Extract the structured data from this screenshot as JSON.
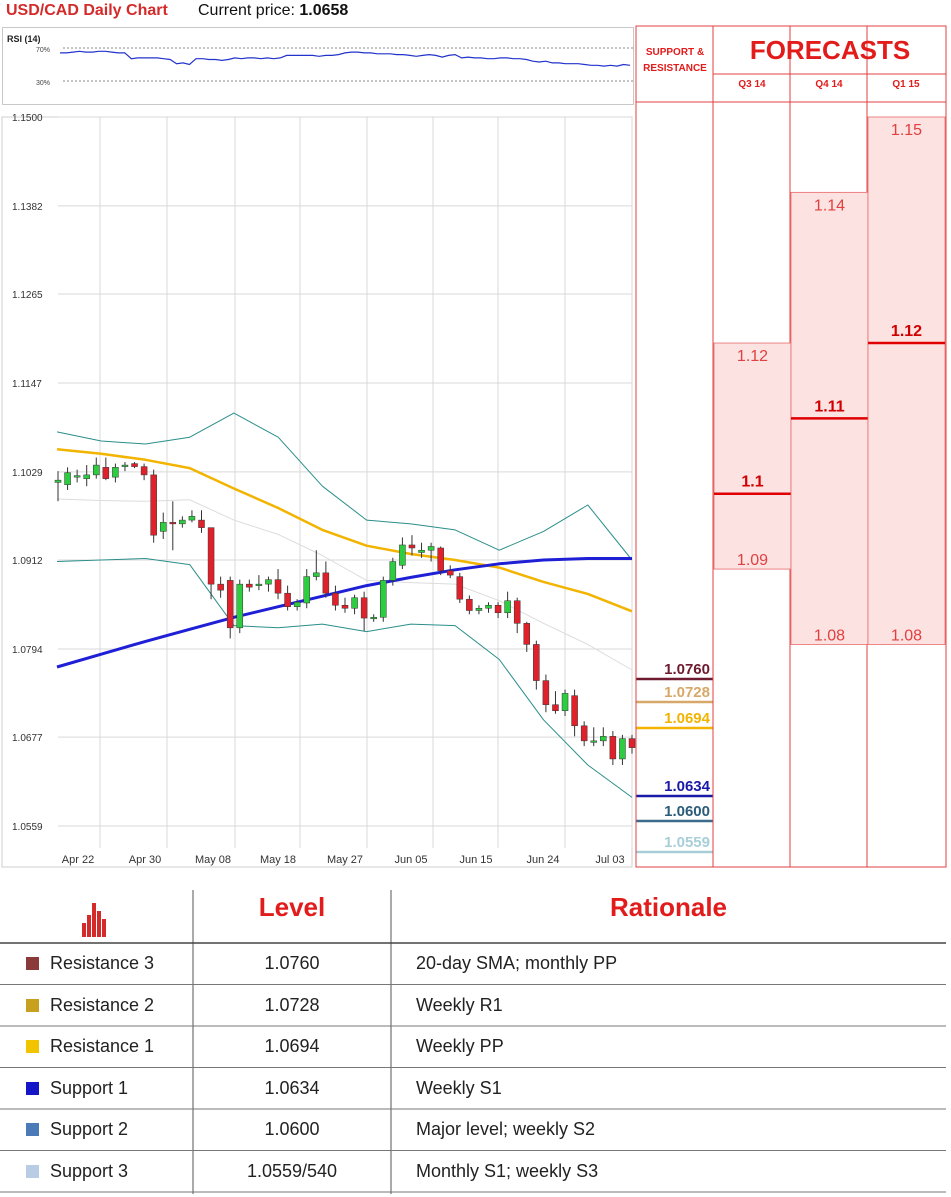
{
  "header": {
    "title": "USD/CAD Daily Chart",
    "price_label": "Current price:",
    "price_value": "1.0658"
  },
  "rsi": {
    "label": "RSI (14)",
    "levels": [
      "70%",
      "30%"
    ],
    "values": [
      64,
      64,
      65,
      66,
      65,
      65,
      66,
      66,
      65,
      64,
      64,
      57,
      58,
      58,
      58,
      58,
      57,
      56,
      51,
      52,
      50,
      57,
      57,
      56,
      56,
      55,
      56,
      58,
      57,
      58,
      58,
      57,
      58,
      57,
      58,
      61,
      61,
      61,
      61,
      61,
      60,
      61,
      61,
      62,
      64,
      65,
      65,
      64,
      64,
      63,
      63,
      63,
      62,
      62,
      61,
      60,
      61,
      62,
      61,
      59,
      61,
      62,
      58,
      59,
      58,
      58,
      57,
      57,
      58,
      58,
      57,
      57,
      56,
      54,
      53,
      54,
      52,
      52,
      51,
      51,
      51,
      50,
      49,
      49,
      48,
      49,
      48,
      50,
      49
    ]
  },
  "chart_data": {
    "type": "candlestick",
    "title": "USD/CAD Daily Chart",
    "y_ticks": [
      "1.1500",
      "1.1382",
      "1.1265",
      "1.1147",
      "1.1029",
      "1.0912",
      "1.0794",
      "1.0677",
      "1.0559"
    ],
    "x_ticks": [
      "Apr 22",
      "Apr 30",
      "May 08",
      "May 18",
      "May 27",
      "Jun 05",
      "Jun 15",
      "Jun 24",
      "Jul 03"
    ],
    "ylim": [
      1.0559,
      1.15
    ],
    "grid": true,
    "candles": [
      {
        "date": "Apr 21",
        "o": 1.1015,
        "h": 1.103,
        "l": 1.099,
        "c": 1.1018
      },
      {
        "date": "Apr 22",
        "o": 1.1012,
        "h": 1.1035,
        "l": 1.1005,
        "c": 1.1028
      },
      {
        "date": "Apr 23",
        "o": 1.1022,
        "h": 1.1032,
        "l": 1.1015,
        "c": 1.1024
      },
      {
        "date": "Apr 24",
        "o": 1.102,
        "h": 1.1038,
        "l": 1.101,
        "c": 1.1025
      },
      {
        "date": "Apr 25",
        "o": 1.1025,
        "h": 1.1048,
        "l": 1.102,
        "c": 1.1038
      },
      {
        "date": "Apr 28",
        "o": 1.1035,
        "h": 1.1048,
        "l": 1.1018,
        "c": 1.102
      },
      {
        "date": "Apr 29",
        "o": 1.1022,
        "h": 1.104,
        "l": 1.1015,
        "c": 1.1035
      },
      {
        "date": "Apr 30",
        "o": 1.1036,
        "h": 1.1042,
        "l": 1.103,
        "c": 1.1038
      },
      {
        "date": "May 01",
        "o": 1.104,
        "h": 1.1042,
        "l": 1.1034,
        "c": 1.1036
      },
      {
        "date": "May 02",
        "o": 1.1036,
        "h": 1.104,
        "l": 1.1018,
        "c": 1.1025
      },
      {
        "date": "May 05",
        "o": 1.1025,
        "h": 1.1032,
        "l": 1.0935,
        "c": 1.0945
      },
      {
        "date": "May 06",
        "o": 1.095,
        "h": 1.0975,
        "l": 1.094,
        "c": 1.0962
      },
      {
        "date": "May 07",
        "o": 1.0962,
        "h": 1.099,
        "l": 1.0925,
        "c": 1.096
      },
      {
        "date": "May 08",
        "o": 1.096,
        "h": 1.097,
        "l": 1.0955,
        "c": 1.0965
      },
      {
        "date": "May 09",
        "o": 1.0965,
        "h": 1.0978,
        "l": 1.0962,
        "c": 1.097
      },
      {
        "date": "May 12",
        "o": 1.0965,
        "h": 1.0978,
        "l": 1.0948,
        "c": 1.0955
      },
      {
        "date": "May 13",
        "o": 1.0955,
        "h": 1.0955,
        "l": 1.086,
        "c": 1.088
      },
      {
        "date": "May 14",
        "o": 1.088,
        "h": 1.089,
        "l": 1.0862,
        "c": 1.0872
      },
      {
        "date": "May 15",
        "o": 1.0885,
        "h": 1.089,
        "l": 1.0808,
        "c": 1.0822
      },
      {
        "date": "May 16",
        "o": 1.0822,
        "h": 1.0886,
        "l": 1.0815,
        "c": 1.088
      },
      {
        "date": "May 19",
        "o": 1.088,
        "h": 1.0886,
        "l": 1.087,
        "c": 1.0876
      },
      {
        "date": "May 20",
        "o": 1.0878,
        "h": 1.0892,
        "l": 1.0872,
        "c": 1.088
      },
      {
        "date": "May 21",
        "o": 1.088,
        "h": 1.089,
        "l": 1.087,
        "c": 1.0886
      },
      {
        "date": "May 22",
        "o": 1.0886,
        "h": 1.09,
        "l": 1.086,
        "c": 1.0868
      },
      {
        "date": "May 23",
        "o": 1.0868,
        "h": 1.0878,
        "l": 1.0845,
        "c": 1.085
      },
      {
        "date": "May 26",
        "o": 1.085,
        "h": 1.086,
        "l": 1.0845,
        "c": 1.0856
      },
      {
        "date": "May 27",
        "o": 1.0855,
        "h": 1.09,
        "l": 1.0848,
        "c": 1.089
      },
      {
        "date": "May 28",
        "o": 1.089,
        "h": 1.0925,
        "l": 1.0885,
        "c": 1.0895
      },
      {
        "date": "May 29",
        "o": 1.0895,
        "h": 1.091,
        "l": 1.0862,
        "c": 1.0868
      },
      {
        "date": "May 30",
        "o": 1.0868,
        "h": 1.0878,
        "l": 1.0845,
        "c": 1.0852
      },
      {
        "date": "Jun 02",
        "o": 1.0852,
        "h": 1.0862,
        "l": 1.0842,
        "c": 1.0848
      },
      {
        "date": "Jun 03",
        "o": 1.0848,
        "h": 1.0866,
        "l": 1.084,
        "c": 1.0862
      },
      {
        "date": "Jun 04",
        "o": 1.0862,
        "h": 1.087,
        "l": 1.0818,
        "c": 1.0835
      },
      {
        "date": "Jun 05",
        "o": 1.0835,
        "h": 1.084,
        "l": 1.083,
        "c": 1.0836
      },
      {
        "date": "Jun 06",
        "o": 1.0836,
        "h": 1.089,
        "l": 1.083,
        "c": 1.0885
      },
      {
        "date": "Jun 09",
        "o": 1.0885,
        "h": 1.0915,
        "l": 1.0878,
        "c": 1.091
      },
      {
        "date": "Jun 10",
        "o": 1.0905,
        "h": 1.0942,
        "l": 1.09,
        "c": 1.0932
      },
      {
        "date": "Jun 11",
        "o": 1.0932,
        "h": 1.0945,
        "l": 1.0918,
        "c": 1.0928
      },
      {
        "date": "Jun 12",
        "o": 1.0922,
        "h": 1.0935,
        "l": 1.0915,
        "c": 1.0925
      },
      {
        "date": "Jun 13",
        "o": 1.0925,
        "h": 1.0935,
        "l": 1.091,
        "c": 1.093
      },
      {
        "date": "Jun 16",
        "o": 1.0928,
        "h": 1.093,
        "l": 1.0892,
        "c": 1.0898
      },
      {
        "date": "Jun 17",
        "o": 1.0898,
        "h": 1.0905,
        "l": 1.0888,
        "c": 1.0892
      },
      {
        "date": "Jun 18",
        "o": 1.089,
        "h": 1.0895,
        "l": 1.0855,
        "c": 1.086
      },
      {
        "date": "Jun 19",
        "o": 1.086,
        "h": 1.0865,
        "l": 1.084,
        "c": 1.0845
      },
      {
        "date": "Jun 20",
        "o": 1.0845,
        "h": 1.0852,
        "l": 1.084,
        "c": 1.0848
      },
      {
        "date": "Jun 23",
        "o": 1.0848,
        "h": 1.0856,
        "l": 1.0842,
        "c": 1.0852
      },
      {
        "date": "Jun 24",
        "o": 1.0852,
        "h": 1.0856,
        "l": 1.0835,
        "c": 1.0842
      },
      {
        "date": "Jun 25",
        "o": 1.0842,
        "h": 1.087,
        "l": 1.0835,
        "c": 1.0858
      },
      {
        "date": "Jun 26",
        "o": 1.0858,
        "h": 1.0862,
        "l": 1.0815,
        "c": 1.0828
      },
      {
        "date": "Jun 27",
        "o": 1.0828,
        "h": 1.083,
        "l": 1.079,
        "c": 1.08
      },
      {
        "date": "Jun 30",
        "o": 1.08,
        "h": 1.0805,
        "l": 1.074,
        "c": 1.0752
      },
      {
        "date": "Jul 01",
        "o": 1.0752,
        "h": 1.076,
        "l": 1.071,
        "c": 1.072
      },
      {
        "date": "Jul 02",
        "o": 1.072,
        "h": 1.0738,
        "l": 1.0708,
        "c": 1.0712
      },
      {
        "date": "Jul 03",
        "o": 1.0712,
        "h": 1.074,
        "l": 1.0705,
        "c": 1.0735
      },
      {
        "date": "Jul 04",
        "o": 1.0732,
        "h": 1.074,
        "l": 1.0678,
        "c": 1.0692
      },
      {
        "date": "Jul 07",
        "o": 1.0692,
        "h": 1.0698,
        "l": 1.0665,
        "c": 1.0672
      },
      {
        "date": "Jul 08",
        "o": 1.067,
        "h": 1.069,
        "l": 1.0665,
        "c": 1.0672
      },
      {
        "date": "Jul 09",
        "o": 1.0672,
        "h": 1.069,
        "l": 1.0665,
        "c": 1.0678
      },
      {
        "date": "Jul 10",
        "o": 1.0678,
        "h": 1.0685,
        "l": 1.064,
        "c": 1.0648
      },
      {
        "date": "Jul 11",
        "o": 1.0648,
        "h": 1.068,
        "l": 1.064,
        "c": 1.0675
      },
      {
        "date": "Jul 14",
        "o": 1.0675,
        "h": 1.068,
        "l": 1.0655,
        "c": 1.0663
      }
    ],
    "sma_200": {
      "color": "#1f1fd6",
      "points": [
        1.077,
        1.0787,
        1.0804,
        1.082,
        1.0836,
        1.085,
        1.0864,
        1.0878,
        1.0889,
        1.0899,
        1.0907,
        1.0912,
        1.0914,
        1.0914
      ]
    },
    "sma_100": {
      "color": "#f2b400",
      "points": [
        1.1059,
        1.1053,
        1.1045,
        1.1034,
        1.1007,
        1.0981,
        1.0952,
        1.0931,
        1.092,
        1.0912,
        1.0902,
        1.0883,
        1.0867,
        1.0844
      ]
    },
    "bb_upper": [
      1.1082,
      1.107,
      1.1066,
      1.1075,
      1.1107,
      1.1075,
      1.101,
      1.0965,
      1.096,
      1.0952,
      1.0925,
      1.095,
      1.0985,
      1.0912
    ],
    "bb_lower": [
      1.091,
      1.0912,
      1.0914,
      1.0906,
      1.0825,
      1.0822,
      1.0827,
      1.0817,
      1.0827,
      1.0825,
      1.078,
      1.07,
      1.064,
      1.0597
    ],
    "bb_middle": [
      1.0993,
      1.0991,
      1.099,
      1.0992,
      1.0965,
      1.0946,
      1.0918,
      1.0885,
      1.0882,
      1.088,
      1.0858,
      1.0828,
      1.08,
      1.0766
    ],
    "sr_levels": [
      {
        "value": "1.0760",
        "color": "#6e1b2f",
        "line": "#6e1b2f"
      },
      {
        "value": "1.0728",
        "color": "#d8a868",
        "line": "#d8a868"
      },
      {
        "value": "1.0694",
        "color": "#f2b400",
        "line": "#f2b400"
      },
      {
        "value": "1.0634",
        "color": "#1a1aa8",
        "line": "#1a1aa8"
      },
      {
        "value": "1.0600",
        "color": "#2b5c7a",
        "line": "#3b6a8a"
      },
      {
        "value": "1.0559",
        "color": "#a8cfd8",
        "line": "#a8cfd8"
      }
    ],
    "forecasts": [
      {
        "quarter": "Q3 14",
        "high": 1.12,
        "mid": 1.1,
        "low": 1.09,
        "high_label": "1.12",
        "mid_label": "1.1",
        "low_label": "1.09"
      },
      {
        "quarter": "Q4 14",
        "high": 1.14,
        "mid": 1.11,
        "low": 1.08,
        "high_label": "1.14",
        "mid_label": "1.11",
        "low_label": "1.08"
      },
      {
        "quarter": "Q1 15",
        "high": 1.15,
        "mid": 1.12,
        "low": 1.08,
        "high_label": "1.15",
        "mid_label": "1.12",
        "low_label": "1.08"
      }
    ]
  },
  "forecast_panel": {
    "title": "FORECASTS",
    "sr_header_line1": "SUPPORT &",
    "sr_header_line2": "RESISTANCE"
  },
  "table": {
    "col_level": "Level",
    "col_rationale": "Rationale",
    "rows": [
      {
        "name": "Resistance 3",
        "level": "1.0760",
        "rationale": "20-day SMA; monthly PP",
        "color": "#8b3a3a"
      },
      {
        "name": "Resistance 2",
        "level": "1.0728",
        "rationale": "Weekly R1",
        "color": "#c8a020"
      },
      {
        "name": "Resistance 1",
        "level": "1.0694",
        "rationale": "Weekly PP",
        "color": "#f2c400"
      },
      {
        "name": "Support 1",
        "level": "1.0634",
        "rationale": "Weekly S1",
        "color": "#1515c8"
      },
      {
        "name": "Support 2",
        "level": "1.0600",
        "rationale": "Major level; weekly S2",
        "color": "#4a7ab8"
      },
      {
        "name": "Support 3",
        "level": "1.0559/540",
        "rationale": "Monthly S1; weekly S3",
        "color": "#b8cce4"
      }
    ]
  }
}
